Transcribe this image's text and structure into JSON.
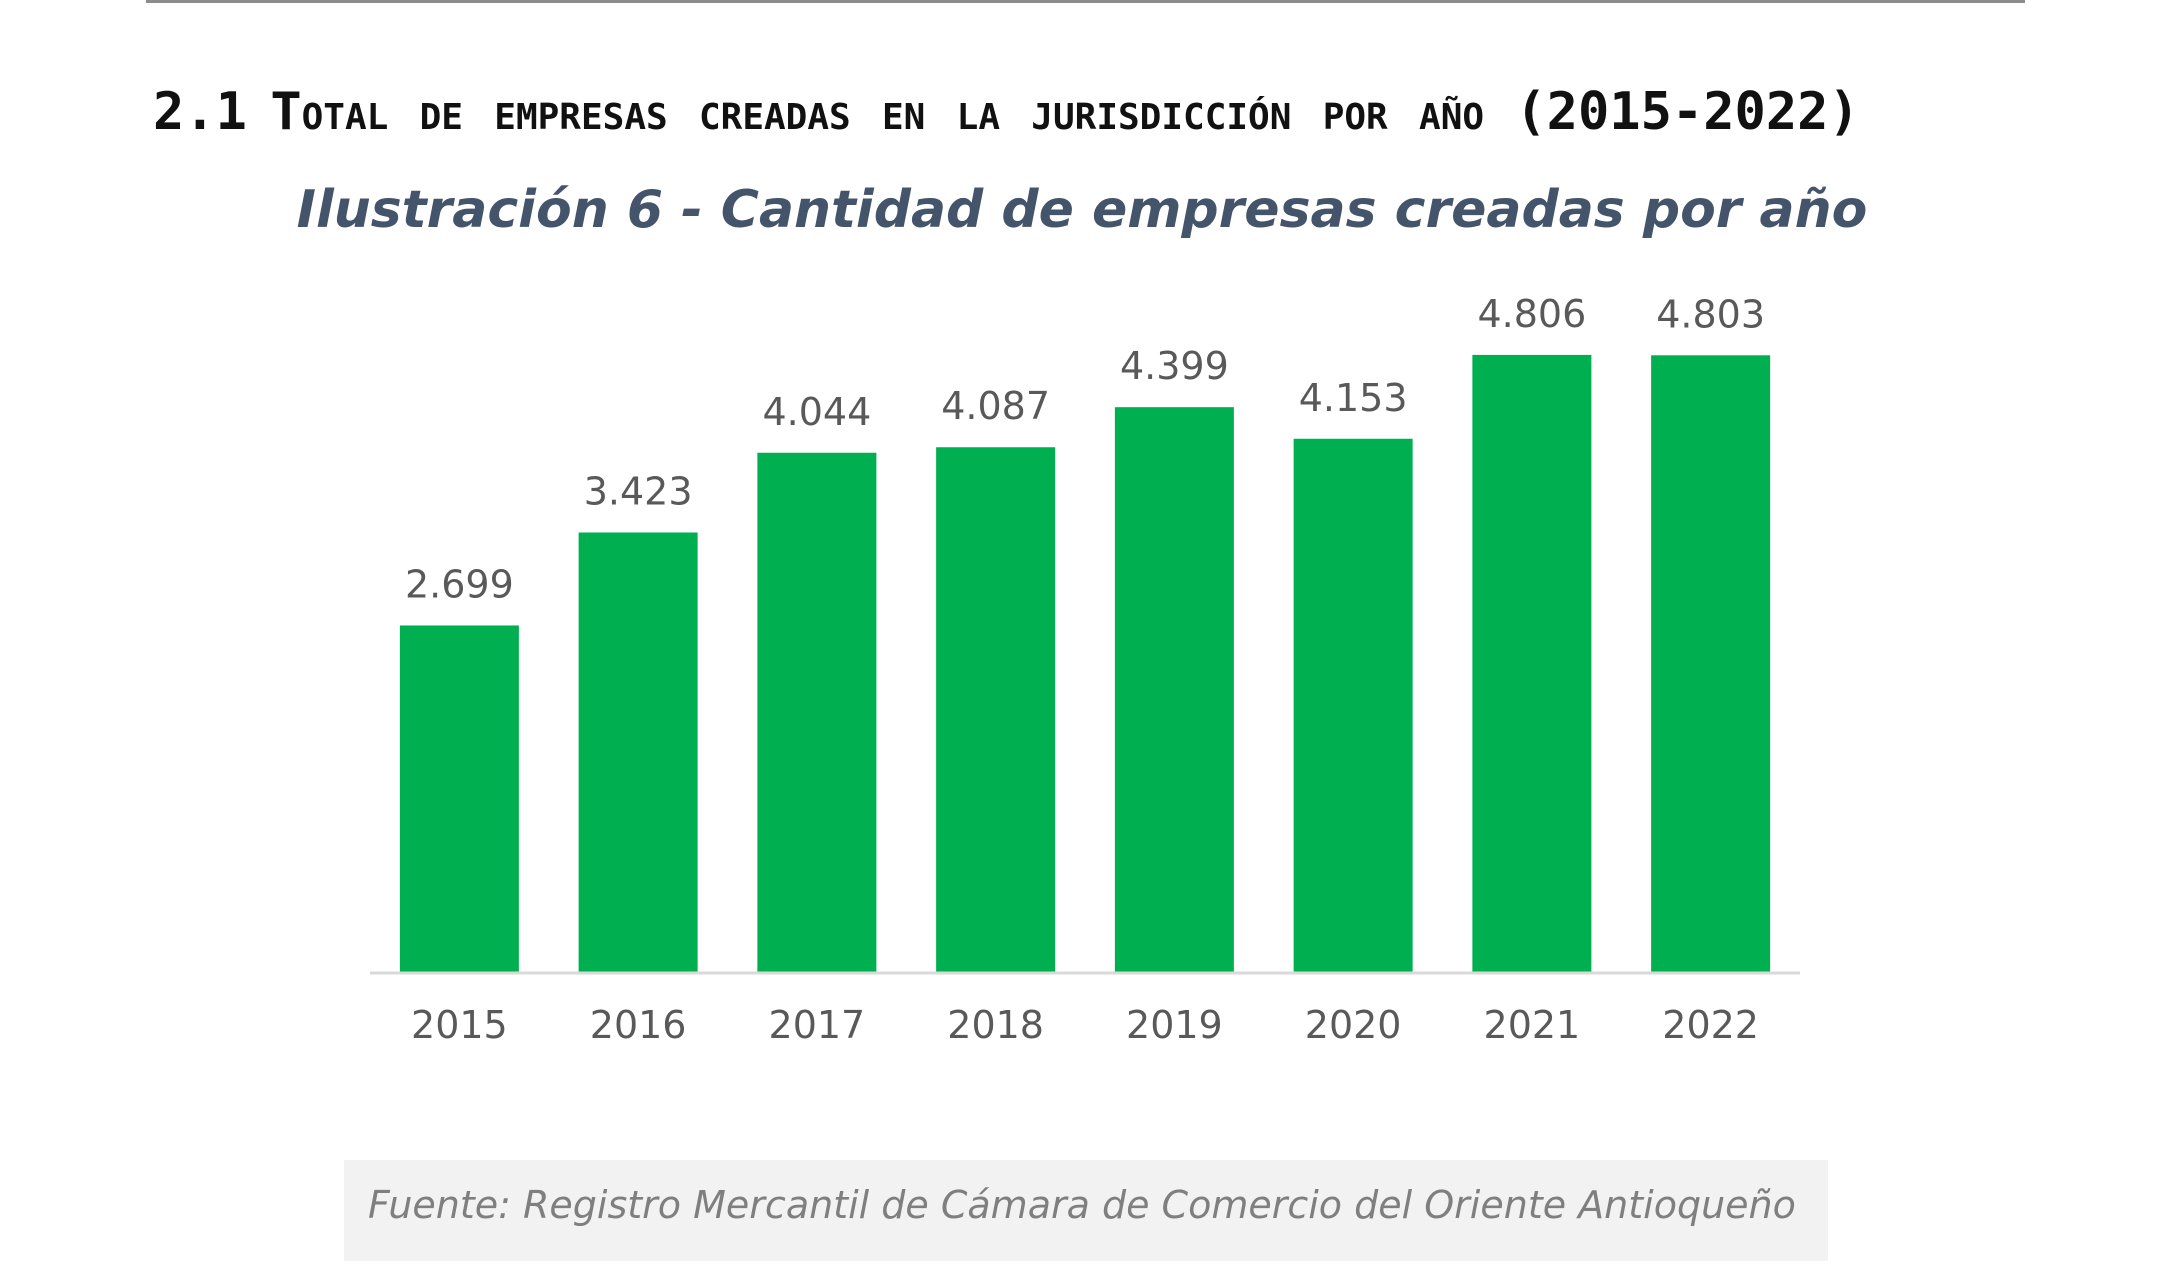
{
  "heading": {
    "number": "2.1",
    "text": "Total de empresas creadas en la jurisdicción por año",
    "range": "(2015-2022)"
  },
  "caption": "Ilustración 6 - Cantidad de empresas creadas por año",
  "source": "Fuente: Registro Mercantil de Cámara de Comercio del Oriente Antioqueño",
  "colors": {
    "bar": "#00b050",
    "label": "#595959",
    "axis": "#d9d9d9",
    "caption": "#44546a"
  },
  "chart_data": {
    "type": "bar",
    "title": "",
    "xlabel": "",
    "ylabel": "",
    "categories": [
      "2015",
      "2016",
      "2017",
      "2018",
      "2019",
      "2020",
      "2021",
      "2022"
    ],
    "values": [
      2699,
      3423,
      4044,
      4087,
      4399,
      4153,
      4806,
      4803
    ],
    "value_labels": [
      "2.699",
      "3.423",
      "4.044",
      "4.087",
      "4.399",
      "4.153",
      "4.806",
      "4.803"
    ],
    "ylim": [
      0,
      5000
    ],
    "grid": false,
    "legend": "none"
  }
}
